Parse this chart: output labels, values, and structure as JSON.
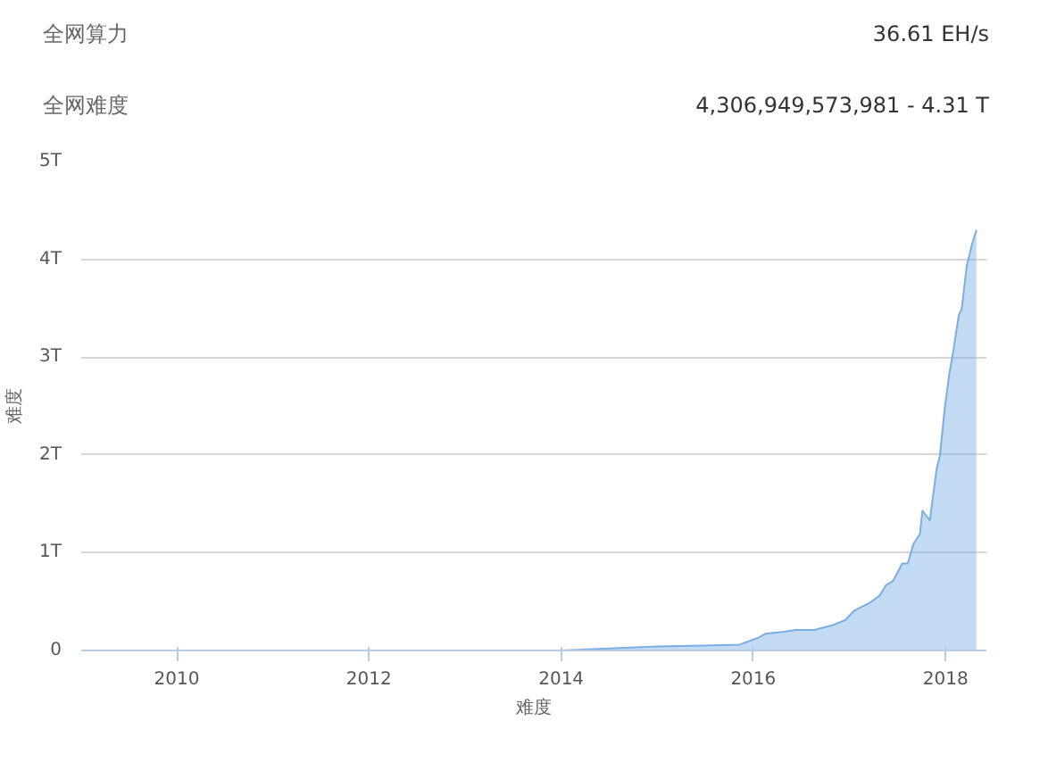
{
  "chart_data": {
    "type": "area",
    "xlabel": "难度",
    "ylabel": "难度",
    "annotations": [
      "全网算力",
      "36.61 EH/s",
      "全网难度",
      "4,306,949,573,981 - 4.31 T"
    ],
    "x": [
      "2009-01-03",
      "2010-01-01",
      "2011-01-01",
      "2012-01-01",
      "2013-01-01",
      "2014-01-01",
      "2014-07-01",
      "2015-01-01",
      "2015-07-01",
      "2015-11-10",
      "2016-01-20",
      "2016-02-15",
      "2016-04-20",
      "2016-06-10",
      "2016-08-20",
      "2016-10-30",
      "2016-12-15",
      "2017-01-20",
      "2017-03-20",
      "2017-04-25",
      "2017-05-20",
      "2017-06-15",
      "2017-07-20",
      "2017-08-10",
      "2017-09-01",
      "2017-09-25",
      "2017-10-05",
      "2017-11-02",
      "2017-11-28",
      "2017-12-10",
      "2017-12-28",
      "2018-01-15",
      "2018-01-30",
      "2018-02-20",
      "2018-03-03",
      "2018-03-22",
      "2018-04-12",
      "2018-04-28"
    ],
    "series": [
      {
        "color": "#7aaee4",
        "values": [
          0,
          0,
          0,
          0,
          0,
          0,
          0.02,
          0.04,
          0.05,
          0.06,
          0.13,
          0.17,
          0.19,
          0.21,
          0.21,
          0.26,
          0.31,
          0.41,
          0.49,
          0.56,
          0.67,
          0.71,
          0.89,
          0.89,
          1.09,
          1.19,
          1.43,
          1.33,
          1.86,
          1.99,
          2.46,
          2.83,
          3.06,
          3.43,
          3.49,
          3.93,
          4.16,
          4.3
        ]
      }
    ],
    "xlim": [
      "2009-01-03",
      "2018-06-05"
    ],
    "xticks": [
      {
        "value": "2010",
        "label": "2010"
      },
      {
        "value": "2012",
        "label": "2012"
      },
      {
        "value": "2014",
        "label": "2014"
      },
      {
        "value": "2016",
        "label": "2016"
      },
      {
        "value": "2018",
        "label": "2018"
      }
    ],
    "ylim": [
      0,
      5
    ],
    "yticks": [
      0,
      {
        "value": 1,
        "label": "1T"
      },
      {
        "value": 2,
        "label": "2T"
      },
      {
        "value": 3,
        "label": "3T"
      },
      {
        "value": 4,
        "label": "4T"
      },
      {
        "value": 5,
        "label": "5T"
      }
    ],
    "grid": "y"
  }
}
